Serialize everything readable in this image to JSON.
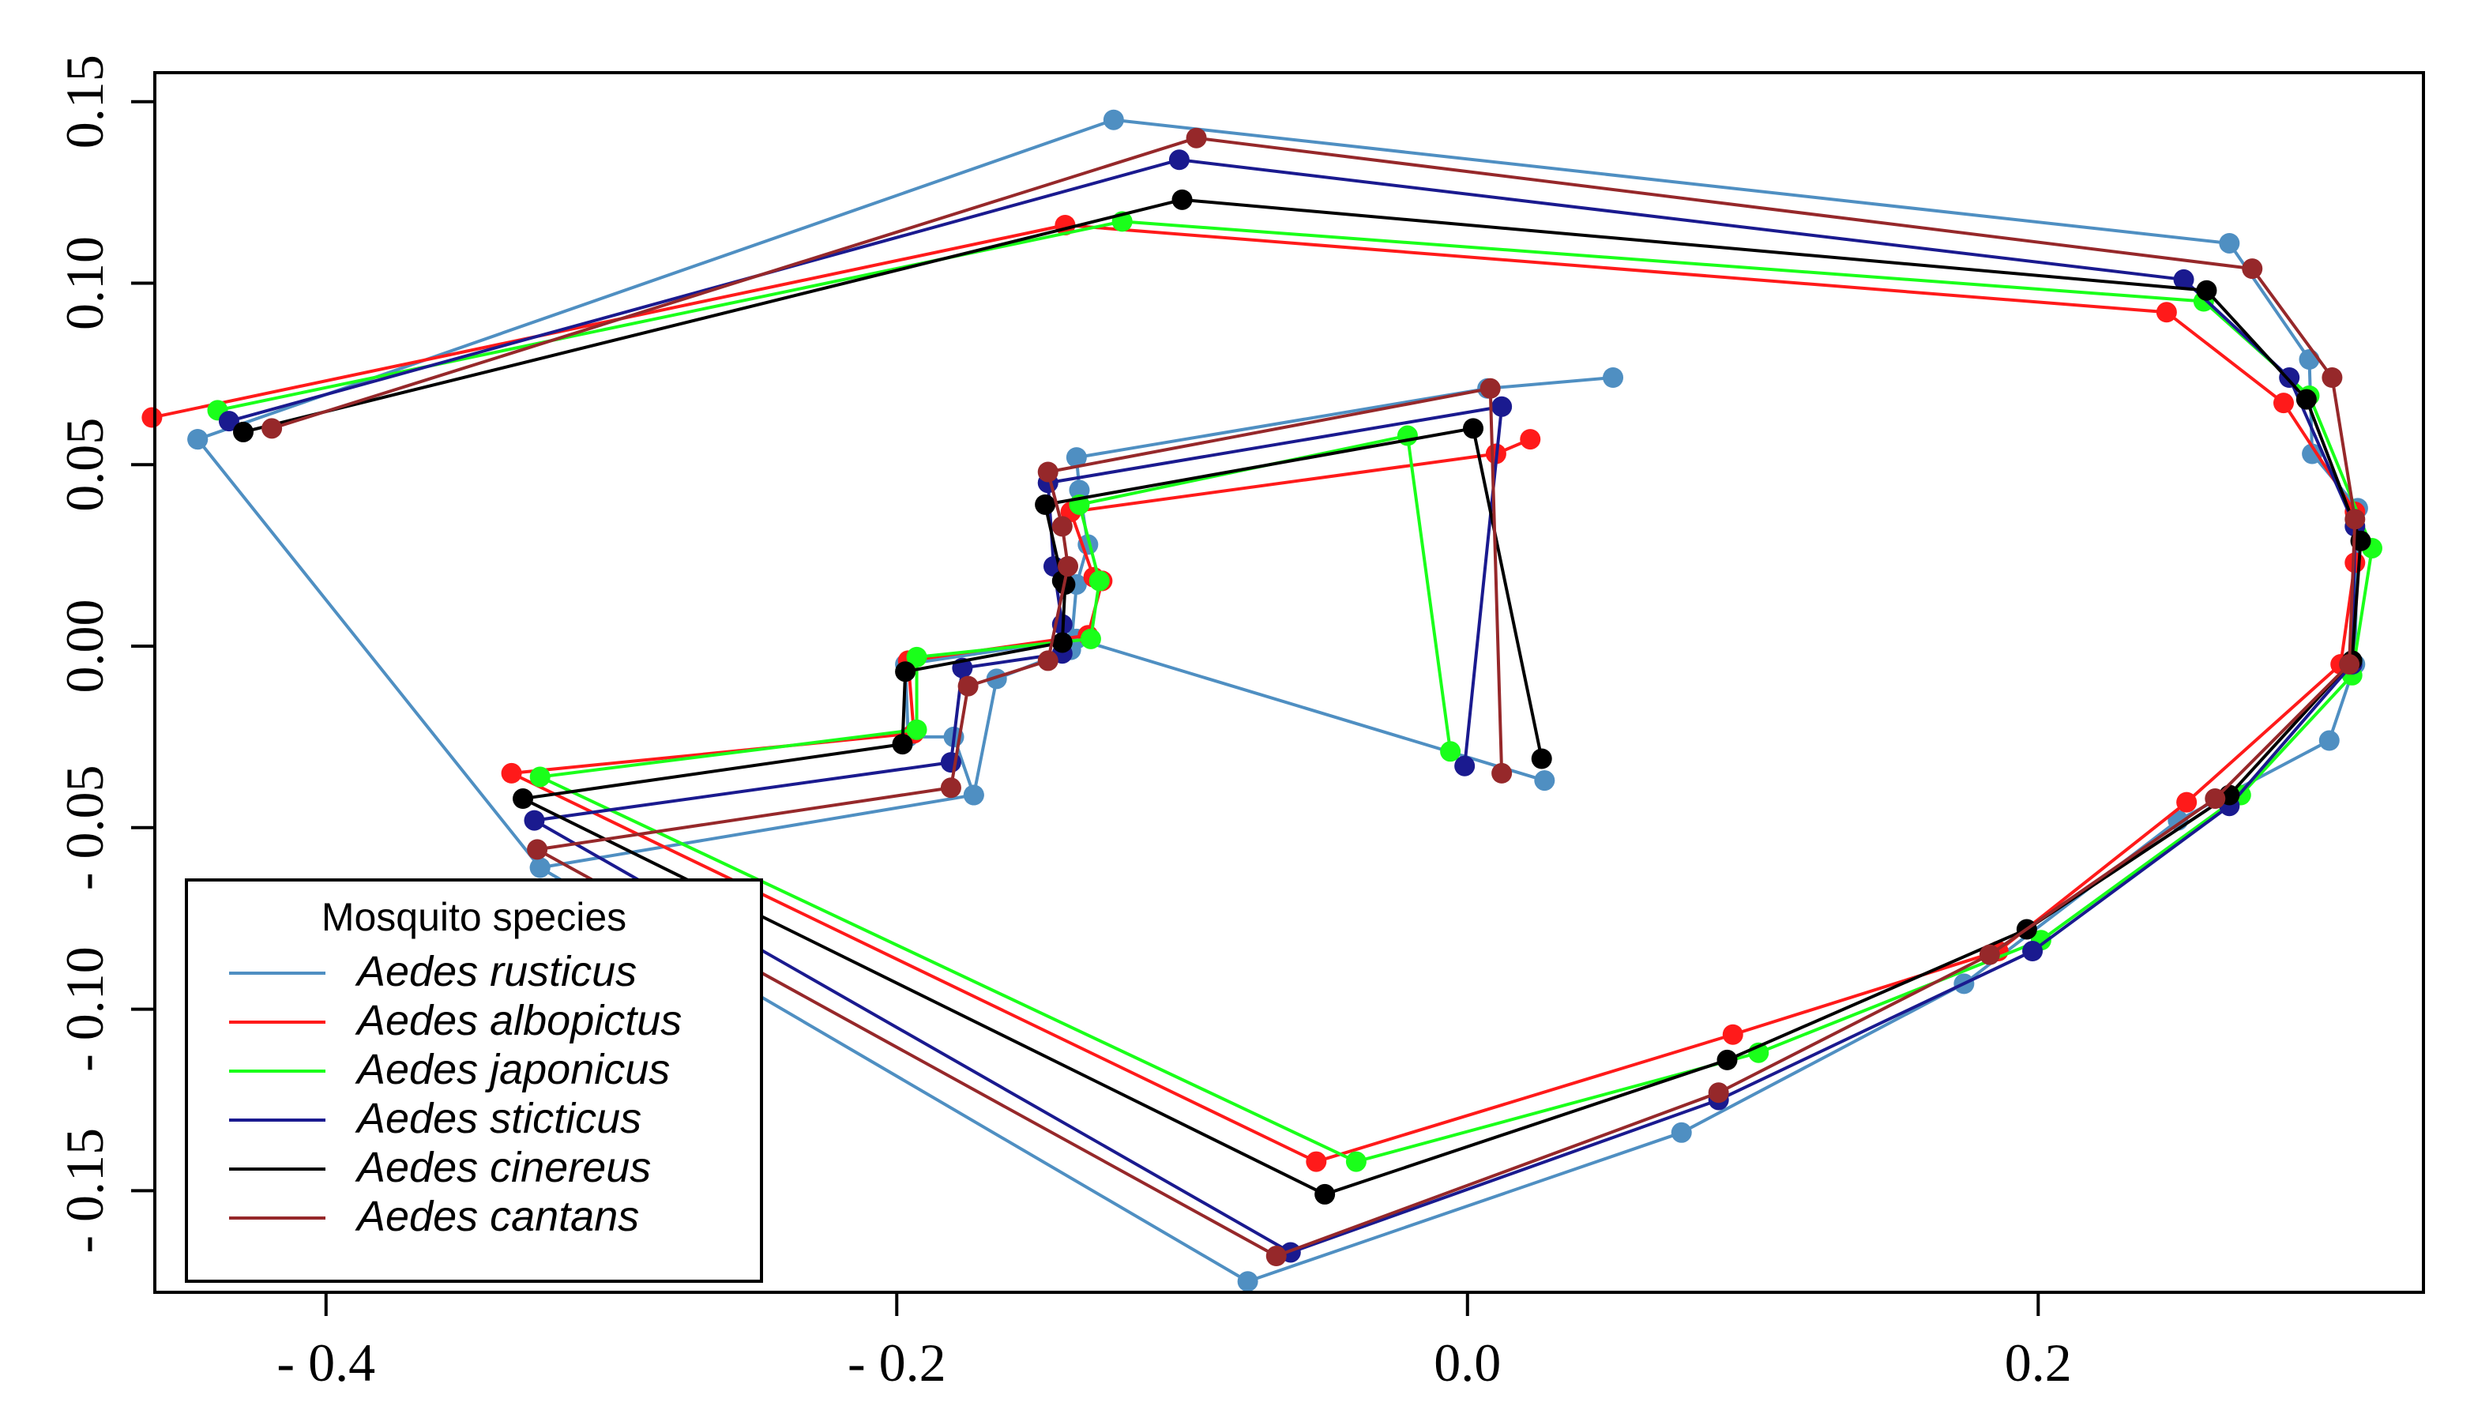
{
  "chart_data": {
    "type": "line",
    "title": "",
    "xlabel": "",
    "ylabel": "",
    "xlim": [
      -0.46,
      0.335
    ],
    "ylim": [
      -0.178,
      0.158
    ],
    "x_ticks": [
      -0.4,
      -0.2,
      0.0,
      0.2
    ],
    "x_tick_labels": [
      "- 0.4",
      "- 0.2",
      "0.0",
      "0.2"
    ],
    "y_ticks": [
      0.15,
      0.1,
      0.05,
      0.0,
      -0.05,
      -0.1,
      -0.15
    ],
    "y_tick_labels": [
      "0.15",
      "0.10",
      "0.05",
      "0.00",
      "- 0.05",
      "- 0.10",
      "- 0.15"
    ],
    "legend": {
      "title": "Mosquito species",
      "position": "bottom-left",
      "entries": [
        "Aedes rusticus",
        "Aedes albopictus",
        "Aedes japonicus",
        "Aedes sticticus",
        "Aedes cinereus",
        "Aedes cantans"
      ]
    },
    "series": [
      {
        "name": "Aedes rusticus",
        "color": "#4f8fc2",
        "x": [
          0.051,
          0.007,
          -0.137,
          -0.136,
          -0.133,
          -0.137,
          -0.139,
          -0.165,
          -0.173,
          -0.325,
          -0.077,
          0.075,
          0.174,
          0.249,
          0.302,
          0.311,
          0.312,
          0.296,
          0.295,
          0.267,
          -0.124,
          -0.445,
          -0.445,
          -0.325,
          -0.173,
          -0.18,
          -0.196,
          -0.197,
          -0.137,
          0.027
        ],
        "y": [
          0.074,
          0.071,
          0.052,
          0.043,
          0.028,
          0.017,
          -0.001,
          -0.009,
          -0.041,
          -0.061,
          -0.175,
          -0.134,
          -0.093,
          -0.048,
          -0.026,
          -0.005,
          0.038,
          0.053,
          0.079,
          0.111,
          0.145,
          0.057,
          0.057,
          -0.061,
          -0.041,
          -0.025,
          -0.025,
          -0.005,
          0.002,
          -0.037
        ]
      },
      {
        "name": "Aedes albopictus",
        "color": "#ff1a1a",
        "x": [
          0.022,
          0.01,
          -0.139,
          -0.131,
          -0.128,
          -0.133,
          -0.196,
          -0.194,
          -0.335,
          -0.053,
          0.093,
          0.186,
          0.252,
          0.306,
          0.311,
          0.311,
          0.286,
          0.245,
          -0.141,
          -0.461
        ],
        "y": [
          0.057,
          0.053,
          0.037,
          0.019,
          0.018,
          0.003,
          -0.004,
          -0.024,
          -0.035,
          -0.142,
          -0.107,
          -0.084,
          -0.043,
          -0.005,
          0.023,
          0.037,
          0.067,
          0.092,
          0.116,
          0.063
        ]
      },
      {
        "name": "Aedes japonicus",
        "color": "#1aff1a",
        "x": [
          -0.006,
          -0.021,
          -0.136,
          -0.129,
          -0.132,
          -0.193,
          -0.193,
          -0.325,
          -0.039,
          0.102,
          0.201,
          0.271,
          0.31,
          0.317,
          0.295,
          0.258,
          -0.121,
          -0.438
        ],
        "y": [
          -0.029,
          0.058,
          0.039,
          0.018,
          0.002,
          -0.003,
          -0.023,
          -0.036,
          -0.142,
          -0.112,
          -0.081,
          -0.041,
          -0.008,
          0.027,
          0.069,
          0.095,
          0.117,
          0.065
        ]
      },
      {
        "name": "Aedes sticticus",
        "color": "#1a1a8f",
        "x": [
          -0.001,
          0.012,
          -0.147,
          -0.145,
          -0.142,
          -0.142,
          -0.177,
          -0.181,
          -0.327,
          -0.062,
          0.088,
          0.198,
          0.267,
          0.31,
          0.311,
          0.288,
          0.251,
          -0.101,
          -0.434
        ],
        "y": [
          -0.033,
          0.066,
          0.045,
          0.022,
          0.006,
          -0.002,
          -0.006,
          -0.032,
          -0.048,
          -0.167,
          -0.125,
          -0.084,
          -0.044,
          -0.005,
          0.033,
          0.074,
          0.101,
          0.134,
          0.062
        ]
      },
      {
        "name": "Aedes cinereus",
        "color": "#000000",
        "x": [
          0.026,
          0.002,
          -0.148,
          -0.142,
          -0.141,
          -0.142,
          -0.197,
          -0.198,
          -0.331,
          -0.05,
          0.091,
          0.196,
          0.267,
          0.31,
          0.313,
          0.294,
          0.259,
          -0.1,
          -0.429
        ],
        "y": [
          -0.031,
          0.06,
          0.039,
          0.018,
          0.017,
          0.001,
          -0.007,
          -0.027,
          -0.042,
          -0.151,
          -0.114,
          -0.078,
          -0.041,
          -0.004,
          0.029,
          0.068,
          0.098,
          0.123,
          0.059
        ]
      },
      {
        "name": "Aedes cantans",
        "color": "#96282a",
        "x": [
          0.012,
          0.008,
          -0.147,
          -0.142,
          -0.14,
          -0.147,
          -0.175,
          -0.181,
          -0.326,
          -0.067,
          0.088,
          0.183,
          0.262,
          0.309,
          0.311,
          0.303,
          0.275,
          -0.095,
          -0.419
        ],
        "y": [
          -0.035,
          0.071,
          0.048,
          0.033,
          0.022,
          -0.004,
          -0.011,
          -0.039,
          -0.056,
          -0.168,
          -0.123,
          -0.085,
          -0.042,
          -0.005,
          0.035,
          0.074,
          0.104,
          0.14,
          0.06
        ]
      }
    ]
  }
}
